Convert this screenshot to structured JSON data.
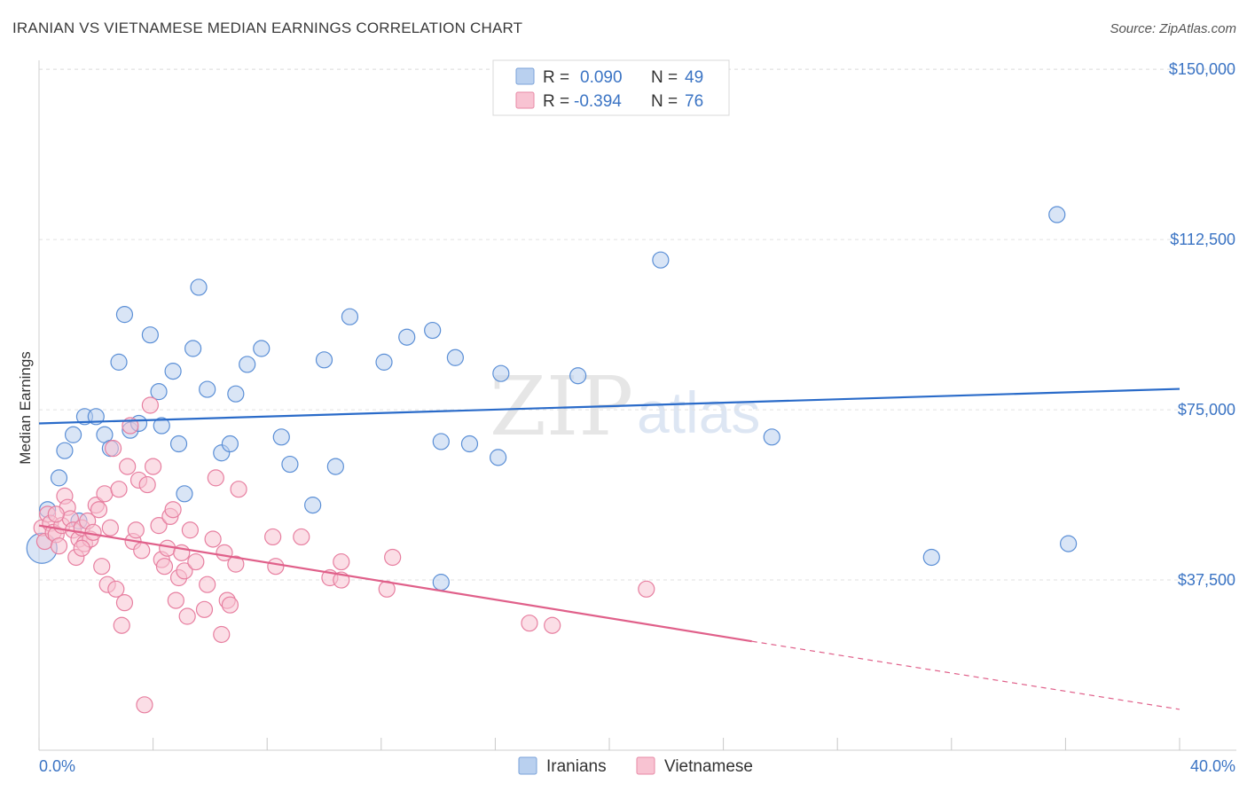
{
  "title": "IRANIAN VS VIETNAMESE MEDIAN EARNINGS CORRELATION CHART",
  "source": "Source: ZipAtlas.com",
  "watermark": {
    "part1": "ZIP",
    "part2": "atlas"
  },
  "legend_top": [
    {
      "r_label": "R =",
      "r_value": "0.090",
      "n_label": "N =",
      "n_value": "49",
      "fill": "#b9d0ef",
      "stroke": "#7aa2d8"
    },
    {
      "r_label": "R =",
      "r_value": "-0.394",
      "n_label": "N =",
      "n_value": "76",
      "fill": "#f8c3d2",
      "stroke": "#e78aa6"
    }
  ],
  "legend_bottom": [
    {
      "label": "Iranians",
      "fill": "#b9d0ef",
      "stroke": "#7aa2d8"
    },
    {
      "label": "Vietnamese",
      "fill": "#f8c3d2",
      "stroke": "#e78aa6"
    }
  ],
  "chart_data": {
    "type": "scatter",
    "ylabel": "Median Earnings",
    "xlim": [
      0,
      40
    ],
    "ylim": [
      0,
      152000
    ],
    "x_tick_labels": [
      "0.0%",
      "40.0%"
    ],
    "y_ticks": [
      37500,
      75000,
      112500,
      150000
    ],
    "y_tick_labels": [
      "$37,500",
      "$75,000",
      "$112,500",
      "$150,000"
    ],
    "grid": true,
    "series": [
      {
        "name": "Iranians",
        "color": "#5b8fd6",
        "fill": "#b9d0ef",
        "trend": {
          "x": [
            0,
            40
          ],
          "y": [
            72000,
            79600
          ],
          "color": "#2a6bc9"
        },
        "points": [
          [
            0.3,
            53000
          ],
          [
            0.7,
            60000
          ],
          [
            0.9,
            66000
          ],
          [
            1.2,
            69500
          ],
          [
            1.6,
            73500
          ],
          [
            1.4,
            50500
          ],
          [
            2.0,
            73500
          ],
          [
            2.3,
            69500
          ],
          [
            2.5,
            66500
          ],
          [
            2.8,
            85500
          ],
          [
            3.0,
            96000
          ],
          [
            3.2,
            70500
          ],
          [
            3.5,
            72000
          ],
          [
            3.9,
            91500
          ],
          [
            4.2,
            79000
          ],
          [
            4.3,
            71500
          ],
          [
            4.7,
            83500
          ],
          [
            4.9,
            67500
          ],
          [
            5.1,
            56500
          ],
          [
            5.4,
            88500
          ],
          [
            5.6,
            102000
          ],
          [
            5.9,
            79500
          ],
          [
            6.4,
            65500
          ],
          [
            6.7,
            67500
          ],
          [
            6.9,
            78500
          ],
          [
            7.3,
            85000
          ],
          [
            7.8,
            88500
          ],
          [
            8.5,
            69000
          ],
          [
            8.8,
            63000
          ],
          [
            9.6,
            54000
          ],
          [
            10.0,
            86000
          ],
          [
            10.4,
            62500
          ],
          [
            10.9,
            95500
          ],
          [
            12.1,
            85500
          ],
          [
            12.9,
            91000
          ],
          [
            13.8,
            92500
          ],
          [
            14.1,
            68000
          ],
          [
            14.1,
            37000
          ],
          [
            14.6,
            86500
          ],
          [
            15.1,
            67500
          ],
          [
            16.1,
            64500
          ],
          [
            16.2,
            83000
          ],
          [
            18.9,
            82500
          ],
          [
            21.8,
            108000
          ],
          [
            25.7,
            69000
          ],
          [
            31.3,
            42500
          ],
          [
            35.7,
            118000
          ],
          [
            36.1,
            45500
          ],
          [
            0.1,
            44500
          ]
        ]
      },
      {
        "name": "Vietnamese",
        "color": "#e77fa0",
        "fill": "#f8c3d2",
        "trend": {
          "x": [
            0,
            25
          ],
          "y": [
            49500,
            24000
          ],
          "dashed_to": {
            "x": 40,
            "y": 9000
          },
          "color": "#e0608a"
        },
        "points": [
          [
            0.1,
            49000
          ],
          [
            0.2,
            46000
          ],
          [
            0.3,
            52000
          ],
          [
            0.4,
            50000
          ],
          [
            0.5,
            48000
          ],
          [
            0.6,
            47500
          ],
          [
            0.7,
            45000
          ],
          [
            0.8,
            49500
          ],
          [
            0.9,
            56000
          ],
          [
            1.0,
            53500
          ],
          [
            1.1,
            51000
          ],
          [
            1.2,
            48500
          ],
          [
            1.3,
            42500
          ],
          [
            1.4,
            46500
          ],
          [
            1.5,
            49000
          ],
          [
            1.6,
            45500
          ],
          [
            1.7,
            50500
          ],
          [
            1.8,
            46500
          ],
          [
            1.9,
            48000
          ],
          [
            2.0,
            54000
          ],
          [
            2.1,
            53000
          ],
          [
            2.2,
            40500
          ],
          [
            2.3,
            56500
          ],
          [
            2.4,
            36500
          ],
          [
            2.6,
            66500
          ],
          [
            2.7,
            35500
          ],
          [
            2.8,
            57500
          ],
          [
            2.9,
            27500
          ],
          [
            3.0,
            32500
          ],
          [
            3.1,
            62500
          ],
          [
            3.2,
            71500
          ],
          [
            3.3,
            46000
          ],
          [
            3.4,
            48500
          ],
          [
            3.5,
            59500
          ],
          [
            3.6,
            44000
          ],
          [
            3.7,
            10000
          ],
          [
            3.8,
            58500
          ],
          [
            3.9,
            76000
          ],
          [
            4.0,
            62500
          ],
          [
            4.2,
            49500
          ],
          [
            4.3,
            42000
          ],
          [
            4.4,
            40500
          ],
          [
            4.5,
            44500
          ],
          [
            4.6,
            51500
          ],
          [
            4.7,
            53000
          ],
          [
            4.8,
            33000
          ],
          [
            4.9,
            38000
          ],
          [
            5.0,
            43500
          ],
          [
            5.1,
            39500
          ],
          [
            5.2,
            29500
          ],
          [
            5.3,
            48500
          ],
          [
            5.5,
            41500
          ],
          [
            5.8,
            31000
          ],
          [
            5.9,
            36500
          ],
          [
            6.1,
            46500
          ],
          [
            6.2,
            60000
          ],
          [
            6.4,
            25500
          ],
          [
            6.5,
            43500
          ],
          [
            6.6,
            33000
          ],
          [
            6.7,
            32000
          ],
          [
            6.9,
            41000
          ],
          [
            7.0,
            57500
          ],
          [
            8.2,
            47000
          ],
          [
            8.3,
            40500
          ],
          [
            9.2,
            47000
          ],
          [
            10.2,
            38000
          ],
          [
            10.6,
            37500
          ],
          [
            10.6,
            41500
          ],
          [
            12.2,
            35500
          ],
          [
            12.4,
            42500
          ],
          [
            17.2,
            28000
          ],
          [
            18.0,
            27500
          ],
          [
            21.3,
            35500
          ],
          [
            0.6,
            52000
          ],
          [
            1.5,
            44500
          ],
          [
            2.5,
            49000
          ]
        ]
      }
    ]
  }
}
